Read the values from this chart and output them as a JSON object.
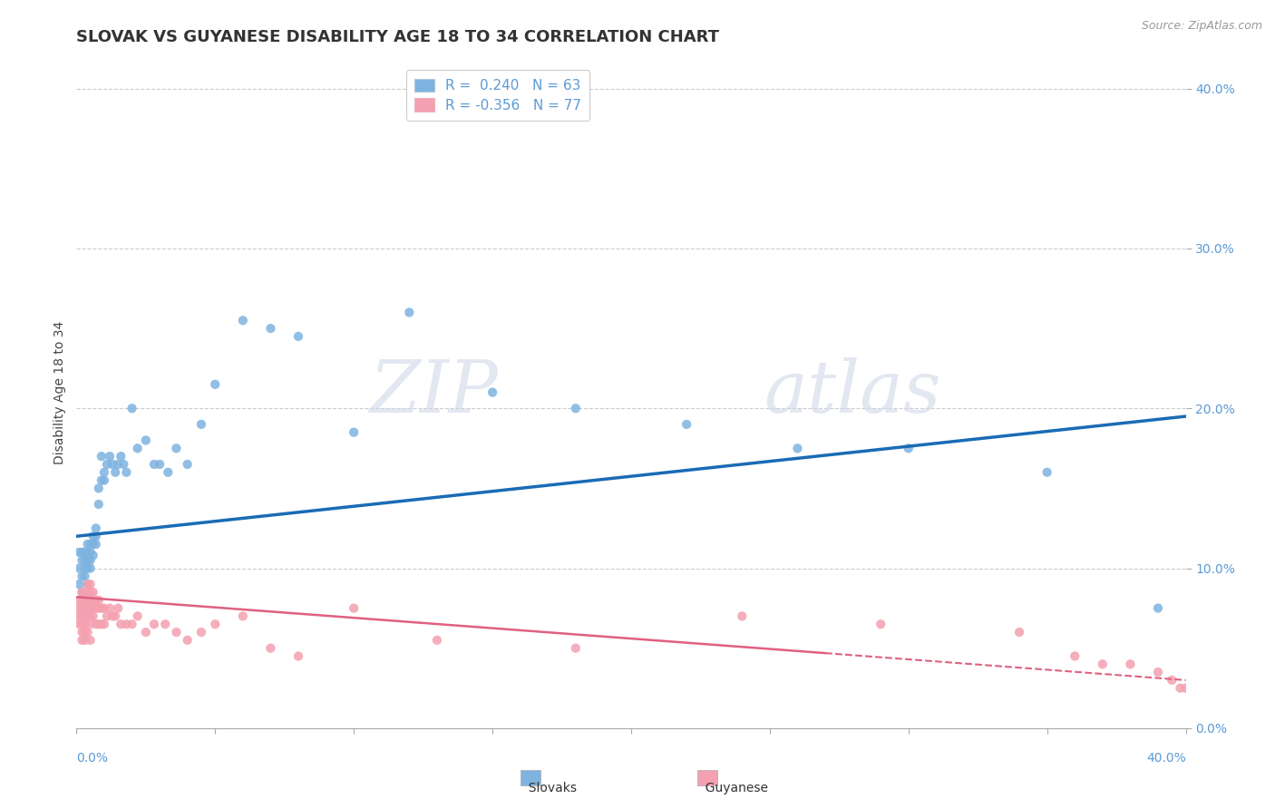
{
  "title": "SLOVAK VS GUYANESE DISABILITY AGE 18 TO 34 CORRELATION CHART",
  "source_text": "Source: ZipAtlas.com",
  "ylabel": "Disability Age 18 to 34",
  "ylabel_ticks": [
    "0.0%",
    "10.0%",
    "20.0%",
    "30.0%",
    "40.0%"
  ],
  "xlim": [
    0.0,
    0.4
  ],
  "ylim": [
    0.0,
    0.42
  ],
  "slovak_R": 0.24,
  "slovak_N": 63,
  "guyanese_R": -0.356,
  "guyanese_N": 77,
  "slovak_color": "#7eb3e0",
  "guyanese_color": "#f4a0b0",
  "slovak_line_color": "#1a6bb5",
  "guyanese_line_color": "#e06080",
  "background_color": "#ffffff",
  "title_fontsize": 13,
  "axis_label_fontsize": 10,
  "tick_fontsize": 10,
  "slovak_x": [
    0.001,
    0.001,
    0.001,
    0.002,
    0.002,
    0.002,
    0.002,
    0.003,
    0.003,
    0.003,
    0.003,
    0.003,
    0.004,
    0.004,
    0.004,
    0.004,
    0.004,
    0.005,
    0.005,
    0.005,
    0.005,
    0.006,
    0.006,
    0.006,
    0.007,
    0.007,
    0.007,
    0.008,
    0.008,
    0.009,
    0.009,
    0.01,
    0.01,
    0.011,
    0.012,
    0.013,
    0.014,
    0.015,
    0.016,
    0.017,
    0.018,
    0.02,
    0.022,
    0.025,
    0.028,
    0.03,
    0.033,
    0.036,
    0.04,
    0.045,
    0.05,
    0.06,
    0.07,
    0.08,
    0.1,
    0.12,
    0.15,
    0.18,
    0.22,
    0.26,
    0.3,
    0.35,
    0.39
  ],
  "slovak_y": [
    0.11,
    0.1,
    0.09,
    0.11,
    0.105,
    0.095,
    0.085,
    0.11,
    0.105,
    0.1,
    0.095,
    0.085,
    0.115,
    0.11,
    0.105,
    0.1,
    0.09,
    0.115,
    0.11,
    0.105,
    0.1,
    0.12,
    0.115,
    0.108,
    0.125,
    0.12,
    0.115,
    0.15,
    0.14,
    0.17,
    0.155,
    0.16,
    0.155,
    0.165,
    0.17,
    0.165,
    0.16,
    0.165,
    0.17,
    0.165,
    0.16,
    0.2,
    0.175,
    0.18,
    0.165,
    0.165,
    0.16,
    0.175,
    0.165,
    0.19,
    0.215,
    0.255,
    0.25,
    0.245,
    0.185,
    0.26,
    0.21,
    0.2,
    0.19,
    0.175,
    0.175,
    0.16,
    0.075
  ],
  "guyanese_x": [
    0.001,
    0.001,
    0.001,
    0.001,
    0.002,
    0.002,
    0.002,
    0.002,
    0.002,
    0.002,
    0.002,
    0.003,
    0.003,
    0.003,
    0.003,
    0.003,
    0.003,
    0.003,
    0.004,
    0.004,
    0.004,
    0.004,
    0.004,
    0.004,
    0.005,
    0.005,
    0.005,
    0.005,
    0.005,
    0.005,
    0.005,
    0.006,
    0.006,
    0.006,
    0.006,
    0.007,
    0.007,
    0.007,
    0.008,
    0.008,
    0.008,
    0.009,
    0.009,
    0.01,
    0.01,
    0.011,
    0.012,
    0.013,
    0.014,
    0.015,
    0.016,
    0.018,
    0.02,
    0.022,
    0.025,
    0.028,
    0.032,
    0.036,
    0.04,
    0.045,
    0.05,
    0.06,
    0.07,
    0.08,
    0.1,
    0.13,
    0.18,
    0.24,
    0.29,
    0.34,
    0.36,
    0.37,
    0.38,
    0.39,
    0.395,
    0.398,
    0.4
  ],
  "guyanese_y": [
    0.08,
    0.075,
    0.07,
    0.065,
    0.085,
    0.08,
    0.075,
    0.07,
    0.065,
    0.06,
    0.055,
    0.085,
    0.08,
    0.075,
    0.07,
    0.065,
    0.06,
    0.055,
    0.09,
    0.085,
    0.08,
    0.075,
    0.07,
    0.06,
    0.09,
    0.085,
    0.08,
    0.075,
    0.07,
    0.065,
    0.055,
    0.085,
    0.08,
    0.075,
    0.07,
    0.08,
    0.075,
    0.065,
    0.08,
    0.075,
    0.065,
    0.075,
    0.065,
    0.075,
    0.065,
    0.07,
    0.075,
    0.07,
    0.07,
    0.075,
    0.065,
    0.065,
    0.065,
    0.07,
    0.06,
    0.065,
    0.065,
    0.06,
    0.055,
    0.06,
    0.065,
    0.07,
    0.05,
    0.045,
    0.075,
    0.055,
    0.05,
    0.07,
    0.065,
    0.06,
    0.045,
    0.04,
    0.04,
    0.035,
    0.03,
    0.025,
    0.025
  ]
}
